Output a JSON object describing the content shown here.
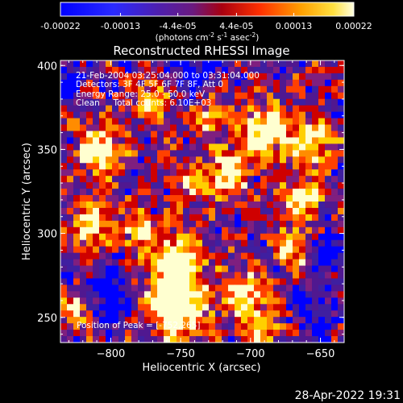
{
  "colorbar": {
    "tick_labels": [
      "-0.00022",
      "-0.00013",
      "-4.4e-05",
      "4.4e-05",
      "0.00013",
      "0.00022"
    ],
    "tick_values": [
      -0.00022,
      -0.00013,
      -4.4e-05,
      4.4e-05,
      0.00013,
      0.00022
    ],
    "range": [
      -0.00022,
      0.00022
    ],
    "units_main": "(photons cm",
    "units_exp1": "-2",
    "units_mid": " s",
    "units_exp2": "-1",
    "units_mid2": " asec",
    "units_exp3": "-2",
    "units_end": ")"
  },
  "footer_timestamp": "28-Apr-2022 19:31",
  "chart_data": {
    "type": "heatmap",
    "title": "Reconstructed RHESSI Image",
    "xlabel": "Heliocentric X (arcsec)",
    "ylabel": "Heliocentric Y (arcsec)",
    "xlim": [
      -836,
      -633
    ],
    "ylim": [
      235,
      403
    ],
    "xticks": [
      -800,
      -750,
      -700,
      -650
    ],
    "xtick_labels": [
      "−800",
      "−750",
      "−700",
      "−650"
    ],
    "yticks": [
      250,
      300,
      350,
      400
    ],
    "ytick_labels": [
      "250",
      "300",
      "350",
      "400"
    ],
    "annotations": [
      "21-Feb-2004 03:25:04.000 to 03:31:04.000",
      "Detectors: 3F 4F 5F 6F 7F 8F, Att 0",
      "Energy Range: 25.0 - 50.0 keV",
      "Clean     Total counts: 6.10E+03"
    ],
    "peak_label": "Position of Peak = [-752,265]",
    "peak_position": [
      -752,
      265
    ],
    "colormap": [
      "#0000ff",
      "#3f1fa0",
      "#501890",
      "#7f1f7f",
      "#cf0000",
      "#ff4000",
      "#ff8c00",
      "#ffd000",
      "#ffffd0"
    ]
  }
}
